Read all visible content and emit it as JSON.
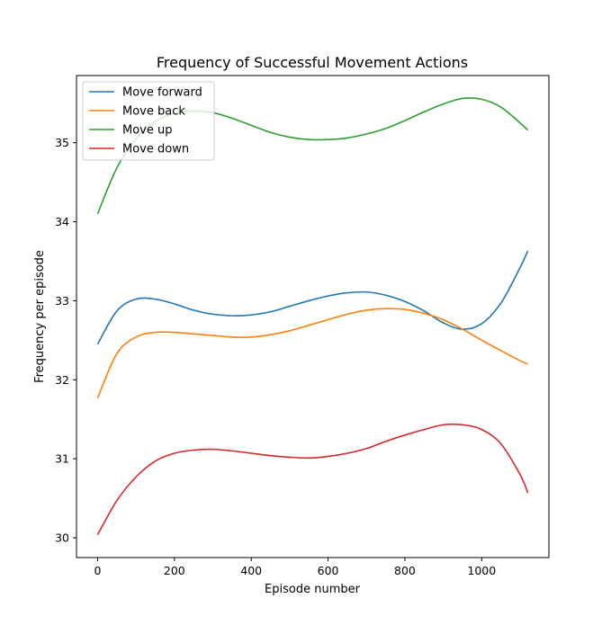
{
  "chart_data": {
    "type": "line",
    "title": "Frequency of Successful Movement Actions",
    "xlabel": "Episode number",
    "ylabel": "Frequency per episode",
    "xlim": [
      -55,
      1175
    ],
    "ylim": [
      29.75,
      35.85
    ],
    "xticks": [
      0,
      200,
      400,
      600,
      800,
      1000
    ],
    "yticks": [
      30,
      31,
      32,
      33,
      34,
      35
    ],
    "grid": false,
    "legend_position": "top-left",
    "x": [
      0,
      50,
      100,
      150,
      200,
      250,
      300,
      350,
      400,
      450,
      500,
      550,
      600,
      650,
      700,
      750,
      800,
      850,
      900,
      950,
      1000,
      1050,
      1100,
      1120
    ],
    "series": [
      {
        "name": "Move forward",
        "color": "#1f77b4",
        "values": [
          32.45,
          32.87,
          33.02,
          33.02,
          32.96,
          32.88,
          32.83,
          32.81,
          32.82,
          32.86,
          32.93,
          33.0,
          33.06,
          33.1,
          33.11,
          33.07,
          32.99,
          32.87,
          32.72,
          32.64,
          32.71,
          32.97,
          33.42,
          33.63
        ]
      },
      {
        "name": "Move back",
        "color": "#ff7f0e",
        "values": [
          31.77,
          32.33,
          32.54,
          32.6,
          32.6,
          32.58,
          32.56,
          32.54,
          32.54,
          32.57,
          32.62,
          32.69,
          32.76,
          32.83,
          32.88,
          32.9,
          32.89,
          32.84,
          32.76,
          32.64,
          32.5,
          32.37,
          32.24,
          32.2
        ]
      },
      {
        "name": "Move up",
        "color": "#2ca02c",
        "values": [
          34.1,
          34.68,
          35.05,
          35.27,
          35.37,
          35.4,
          35.38,
          35.31,
          35.22,
          35.13,
          35.07,
          35.04,
          35.04,
          35.06,
          35.11,
          35.18,
          35.28,
          35.39,
          35.49,
          35.56,
          35.55,
          35.45,
          35.25,
          35.16
        ]
      },
      {
        "name": "Move down",
        "color": "#d62728",
        "values": [
          30.04,
          30.47,
          30.77,
          30.97,
          31.07,
          31.11,
          31.12,
          31.1,
          31.07,
          31.04,
          31.02,
          31.01,
          31.03,
          31.07,
          31.13,
          31.22,
          31.3,
          31.37,
          31.43,
          31.43,
          31.37,
          31.19,
          30.8,
          30.57
        ]
      }
    ]
  }
}
